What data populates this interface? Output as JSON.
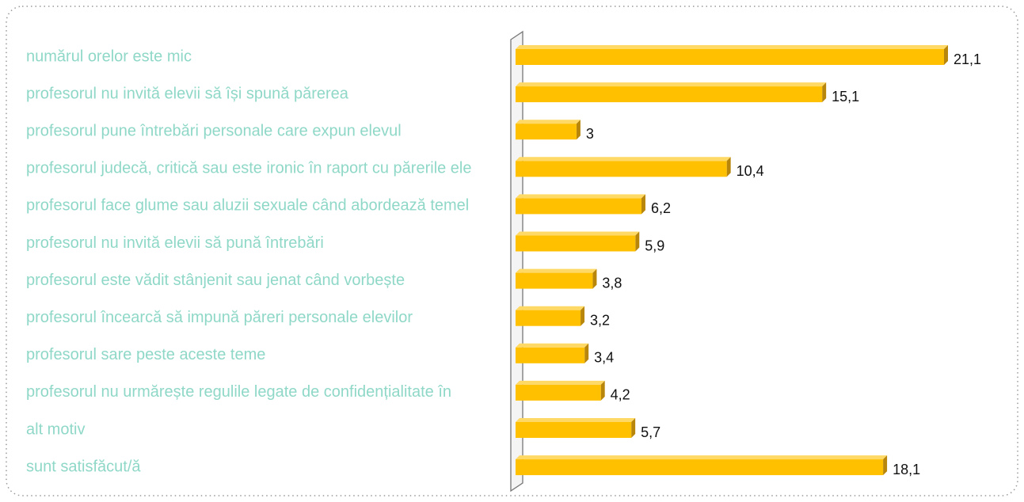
{
  "chart_data": {
    "type": "hbar",
    "categories": [
      "numărul orelor este mic",
      "profesorul nu invită elevii să își spună părerea",
      "profesorul pune întrebări personale care expun elevul",
      "profesorul judecă, critică sau este ironic în raport cu părerile ele",
      "profesorul face glume sau aluzii sexuale când abordează temel",
      "profesorul nu invită elevii să pună întrebări",
      "profesorul este vădit stânjenit sau jenat când vorbește",
      "profesorul încearcă să impună păreri personale elevilor",
      "profesorul sare peste aceste teme",
      "profesorul nu urmărește regulile legate de confidențialitate în",
      "alt motiv",
      "sunt satisfăcut/ă"
    ],
    "values": [
      21.1,
      15.1,
      3,
      10.4,
      6.2,
      5.9,
      3.8,
      3.2,
      3.4,
      4.2,
      5.7,
      18.1
    ],
    "value_labels": [
      "21,1",
      "15,1",
      "3",
      "10,4",
      "6,2",
      "5,9",
      "3,8",
      "3,2",
      "3,4",
      "4,2",
      "5,7",
      "18,1"
    ],
    "color": "#ffc000"
  }
}
